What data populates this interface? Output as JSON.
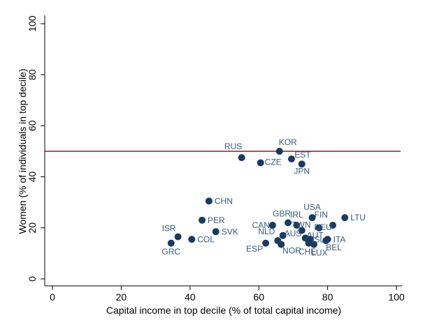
{
  "chart_data": {
    "type": "scatter",
    "xlabel": "Capital income in top decile (% of total capital income)",
    "ylabel": "Women (% of individuals in top decile)",
    "xlim": [
      0,
      100
    ],
    "ylim": [
      0,
      100
    ],
    "xticks": [
      "0",
      "20",
      "40",
      "60",
      "80",
      "100"
    ],
    "yticks": [
      "0",
      "20",
      "40",
      "60",
      "80",
      "100"
    ],
    "grid": false,
    "legend": "none",
    "reference_line_y": 50,
    "marker_color": "#1a3a5e",
    "label_color": "#3a5a7e",
    "reference_line_color": "#a0102a",
    "points": [
      {
        "label": "RUS",
        "x": 55,
        "y": 47.5
      },
      {
        "label": "KOR",
        "x": 66,
        "y": 50
      },
      {
        "label": "CZE",
        "x": 60.5,
        "y": 45.5
      },
      {
        "label": "EST",
        "x": 69.5,
        "y": 47
      },
      {
        "label": "JPN",
        "x": 72.5,
        "y": 45
      },
      {
        "label": "CHN",
        "x": 45.5,
        "y": 30.5
      },
      {
        "label": "PER",
        "x": 43.5,
        "y": 23
      },
      {
        "label": "SVK",
        "x": 47.5,
        "y": 18.5
      },
      {
        "label": "ISR",
        "x": 36.5,
        "y": 16.5
      },
      {
        "label": "COL",
        "x": 40.5,
        "y": 15.5
      },
      {
        "label": "GRC",
        "x": 34.5,
        "y": 14
      },
      {
        "label": "CAN",
        "x": 64,
        "y": 21
      },
      {
        "label": "GBR",
        "x": 68.5,
        "y": 22
      },
      {
        "label": "USA",
        "x": 75.5,
        "y": 24
      },
      {
        "label": "IRL",
        "x": 71,
        "y": 21
      },
      {
        "label": "TWN",
        "x": 72.5,
        "y": 19
      },
      {
        "label": "NLD",
        "x": 65.5,
        "y": 15
      },
      {
        "label": "AUS",
        "x": 67,
        "y": 17
      },
      {
        "label": "AUT",
        "x": 73.5,
        "y": 16
      },
      {
        "label": "ESP",
        "x": 62,
        "y": 14
      },
      {
        "label": "NOR",
        "x": 66.5,
        "y": 13.5
      },
      {
        "label": "ISL",
        "x": 75,
        "y": 15.5
      },
      {
        "label": "FIN",
        "x": 81.5,
        "y": 21
      },
      {
        "label": "DEU",
        "x": 77.5,
        "y": 20
      },
      {
        "label": "LTU",
        "x": 85,
        "y": 24
      },
      {
        "label": "ITA",
        "x": 80,
        "y": 15.5
      },
      {
        "label": "CHE",
        "x": 74.5,
        "y": 14
      },
      {
        "label": "LUX",
        "x": 76,
        "y": 13.5
      },
      {
        "label": "BEL",
        "x": 79.5,
        "y": 15
      }
    ]
  }
}
